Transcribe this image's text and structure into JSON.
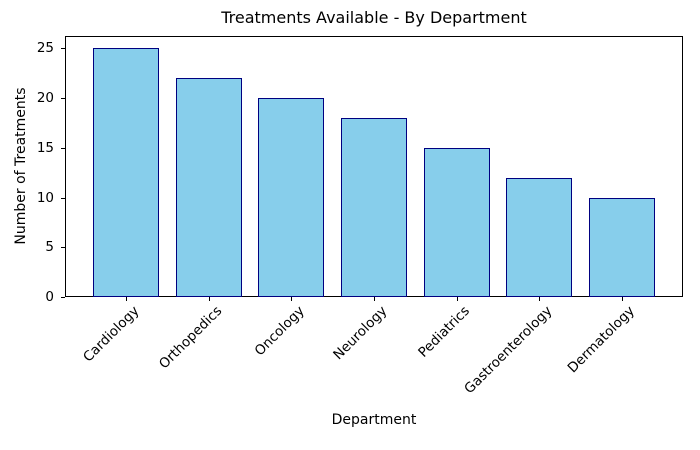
{
  "chart_data": {
    "type": "bar",
    "title": "Treatments Available - By Department",
    "xlabel": "Department",
    "ylabel": "Number of Treatments",
    "categories": [
      "Cardiology",
      "Orthopedics",
      "Oncology",
      "Neurology",
      "Pediatrics",
      "Gastroenterology",
      "Dermatology"
    ],
    "values": [
      25,
      22,
      20,
      18,
      15,
      12,
      10
    ],
    "yticks": [
      0,
      5,
      10,
      15,
      20,
      25
    ],
    "ylim": [
      0,
      26.25
    ],
    "bar_fill_color": "#87CEEB",
    "bar_edge_color": "#000080",
    "x_tick_rotation_deg": 45,
    "grid": false,
    "legend": "none"
  }
}
